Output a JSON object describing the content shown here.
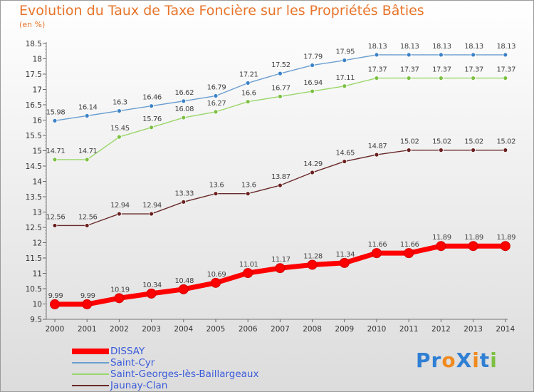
{
  "title": "Evolution du Taux de Taxe Foncière sur les Propriétés Bâties",
  "unit_label": "(en %)",
  "logo": {
    "text": "ProXiti",
    "letters": [
      {
        "ch": "P",
        "color": "#2f7fd4"
      },
      {
        "ch": "r",
        "color": "#2f7fd4"
      },
      {
        "ch": "o",
        "color": "#f08a1e"
      },
      {
        "ch": "X",
        "color": "#2f7fd4"
      },
      {
        "ch": "i",
        "color": "#f08a1e"
      },
      {
        "ch": "t",
        "color": "#2f7fd4"
      },
      {
        "ch": "i",
        "color": "#7cc042"
      }
    ]
  },
  "chart_data": {
    "type": "line",
    "title": "Evolution du Taux de Taxe Foncière sur les Propriétés Bâties",
    "ylabel": "(en %)",
    "xlabel": "",
    "x": [
      "2000",
      "2001",
      "2002",
      "2003",
      "2004",
      "2005",
      "2006",
      "2007",
      "2008",
      "2009",
      "2010",
      "2011",
      "2012",
      "2013",
      "2014"
    ],
    "ylim": [
      9.5,
      18.5
    ],
    "yticks": [
      "9.5",
      "10",
      "10.5",
      "11",
      "11.5",
      "12",
      "12.5",
      "13",
      "13.5",
      "14",
      "14.5",
      "15",
      "15.5",
      "16",
      "16.5",
      "17",
      "17.5",
      "18",
      "18.5"
    ],
    "grid": false,
    "legend_position": "bottom-left",
    "series": [
      {
        "name": "DISSAY",
        "color": "#ff0000",
        "style": "thick",
        "values": [
          9.99,
          9.99,
          10.19,
          10.34,
          10.48,
          10.69,
          11.01,
          11.17,
          11.28,
          11.34,
          11.66,
          11.66,
          11.89,
          11.89,
          11.89
        ],
        "labels": [
          "9.99",
          "9.99",
          "10.19",
          "10.34",
          "10.48",
          "10.69",
          "11.01",
          "11.17",
          "11.28",
          "11.34",
          "11.66",
          "11.66",
          "11.89",
          "11.89",
          "11.89"
        ]
      },
      {
        "name": "Saint-Cyr",
        "color": "#6b9ed0",
        "marker": "#3a82c8",
        "style": "thin",
        "values": [
          15.98,
          16.14,
          16.3,
          16.46,
          16.62,
          16.79,
          17.21,
          17.52,
          17.79,
          17.95,
          18.13,
          18.13,
          18.13,
          18.13,
          18.13
        ],
        "labels": [
          "15.98",
          "16.14",
          "16.3",
          "16.46",
          "16.62",
          "16.79",
          "17.21",
          "17.52",
          "17.79",
          "17.95",
          "18.13",
          "18.13",
          "18.13",
          "18.13",
          "18.13"
        ]
      },
      {
        "name": "Saint-Georges-lès-Baillargeaux",
        "color": "#9ad66a",
        "marker": "#7cc042",
        "style": "thin",
        "values": [
          14.71,
          14.71,
          15.45,
          15.76,
          16.08,
          16.27,
          16.6,
          16.77,
          16.94,
          17.11,
          17.37,
          17.37,
          17.37,
          17.37,
          17.37
        ],
        "labels": [
          "14.71",
          "14.71",
          "15.45",
          "15.76",
          "16.08",
          "16.27",
          "16.6",
          "16.77",
          "16.94",
          "17.11",
          "17.37",
          "17.37",
          "17.37",
          "17.37",
          "17.37"
        ]
      },
      {
        "name": "Jaunay-Clan",
        "color": "#6a2a2a",
        "marker": "#6a1f1f",
        "style": "thin",
        "values": [
          12.56,
          12.56,
          12.94,
          12.94,
          13.33,
          13.6,
          13.6,
          13.87,
          14.29,
          14.65,
          14.87,
          15.02,
          15.02,
          15.02,
          15.02
        ],
        "labels": [
          "12.56",
          "12.56",
          "12.94",
          "12.94",
          "13.33",
          "13.6",
          "13.6",
          "13.87",
          "14.29",
          "14.65",
          "14.87",
          "15.02",
          "15.02",
          "15.02",
          "15.02"
        ]
      }
    ]
  }
}
